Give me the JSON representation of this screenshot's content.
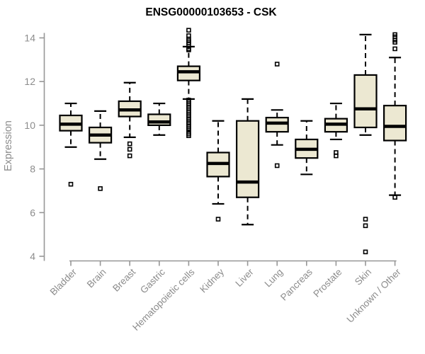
{
  "title": "ENSG00000103653 - CSK",
  "colors": {
    "box_fill": "#ece8d2",
    "box_stroke": "#000000",
    "median_color": "#000000",
    "whisker_color": "#000000",
    "axis_color": "#979797",
    "label_color": "#8c8c8c",
    "title_color": "#000000",
    "background": "#ffffff"
  },
  "chart_data": {
    "type": "boxplot",
    "title": "ENSG00000103653 - CSK",
    "xlabel": "",
    "ylabel": "Expression",
    "ylim": [
      4,
      14.6
    ],
    "yticks": [
      4,
      6,
      8,
      10,
      12,
      14
    ],
    "grid": false,
    "legend": false,
    "categories": [
      "Bladder",
      "Brain",
      "Breast",
      "Gastric",
      "Hematopoietic cells",
      "Kidney",
      "Liver",
      "Lung",
      "Pancreas",
      "Prostate",
      "Skin",
      "Unknown / Other"
    ],
    "series": [
      {
        "name": "Bladder",
        "whisker_low": 9.0,
        "q1": 9.75,
        "median": 10.05,
        "q3": 10.45,
        "whisker_high": 11.0,
        "outliers": [
          7.3
        ]
      },
      {
        "name": "Brain",
        "whisker_low": 8.45,
        "q1": 9.2,
        "median": 9.55,
        "q3": 9.9,
        "whisker_high": 10.65,
        "outliers": [
          7.1
        ]
      },
      {
        "name": "Breast",
        "whisker_low": 9.45,
        "q1": 10.4,
        "median": 10.7,
        "q3": 11.1,
        "whisker_high": 11.95,
        "outliers": [
          9.15,
          8.9,
          8.6
        ]
      },
      {
        "name": "Gastric",
        "whisker_low": 9.55,
        "q1": 10.0,
        "median": 10.15,
        "q3": 10.5,
        "whisker_high": 11.0,
        "outliers": []
      },
      {
        "name": "Hematopoietic cells",
        "whisker_low": 11.2,
        "q1": 12.05,
        "median": 12.45,
        "q3": 12.7,
        "whisker_high": 13.6,
        "outliers": [
          14.35,
          14.1,
          13.95,
          13.87,
          13.78,
          13.7,
          13.5,
          13.45,
          11.15,
          11.07,
          10.99,
          10.91,
          10.83,
          10.75,
          10.67,
          10.59,
          10.51,
          10.43,
          10.35,
          10.27,
          10.19,
          10.11,
          10.03,
          9.95,
          9.87,
          9.79,
          9.68,
          9.6,
          9.52
        ]
      },
      {
        "name": "Kidney",
        "whisker_low": 6.4,
        "q1": 7.65,
        "median": 8.25,
        "q3": 8.75,
        "whisker_high": 10.2,
        "outliers": [
          5.7
        ]
      },
      {
        "name": "Liver",
        "whisker_low": 5.45,
        "q1": 6.7,
        "median": 7.4,
        "q3": 10.2,
        "whisker_high": 11.2,
        "outliers": []
      },
      {
        "name": "Lung",
        "whisker_low": 9.1,
        "q1": 9.7,
        "median": 10.1,
        "q3": 10.35,
        "whisker_high": 10.7,
        "outliers": [
          12.8,
          8.15
        ]
      },
      {
        "name": "Pancreas",
        "whisker_low": 7.75,
        "q1": 8.5,
        "median": 8.9,
        "q3": 9.35,
        "whisker_high": 10.2,
        "outliers": []
      },
      {
        "name": "Prostate",
        "whisker_low": 9.35,
        "q1": 9.7,
        "median": 10.05,
        "q3": 10.3,
        "whisker_high": 11.0,
        "outliers": [
          8.75,
          8.6
        ]
      },
      {
        "name": "Skin",
        "whisker_low": 9.55,
        "q1": 9.9,
        "median": 10.75,
        "q3": 12.3,
        "whisker_high": 14.15,
        "outliers": [
          5.7,
          5.4,
          4.2
        ]
      },
      {
        "name": "Unknown / Other",
        "whisker_low": 6.8,
        "q1": 9.3,
        "median": 9.95,
        "q3": 10.9,
        "whisker_high": 13.1,
        "outliers": [
          14.15,
          14.05,
          13.9,
          13.8,
          13.5,
          6.7
        ]
      }
    ]
  }
}
